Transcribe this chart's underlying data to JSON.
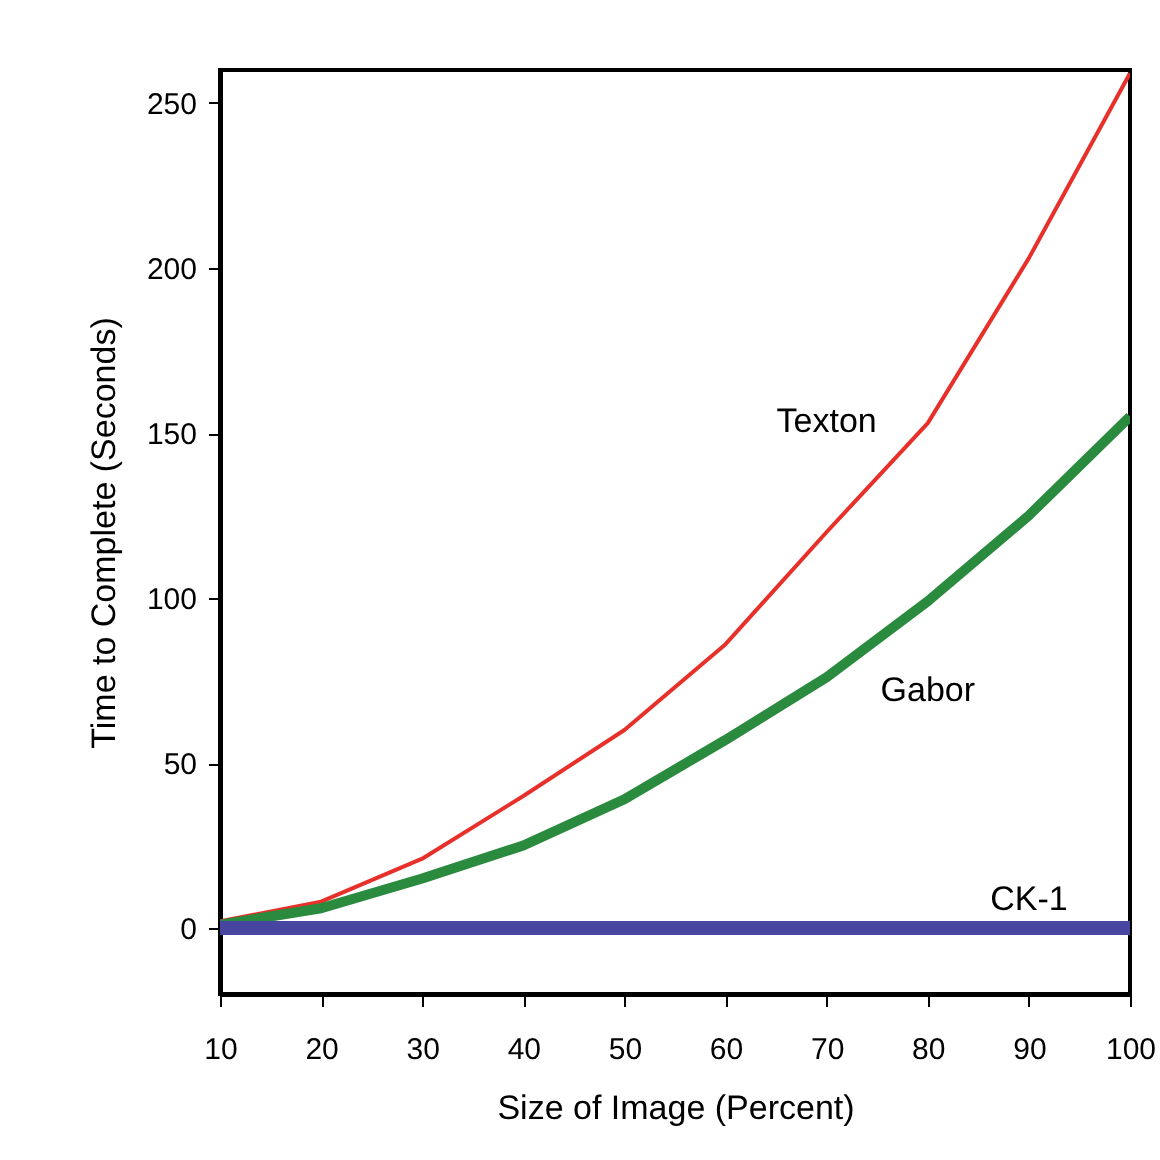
{
  "chart_data": {
    "type": "line",
    "xlabel": "Size of Image (Percent)",
    "ylabel": "Time to Complete (Seconds)",
    "x": [
      10,
      20,
      30,
      40,
      50,
      60,
      70,
      80,
      90,
      100
    ],
    "series": [
      {
        "name": "Texton",
        "color": "#e8302a",
        "values": [
          2,
          8,
          21,
          40,
          60,
          86,
          120,
          153,
          203,
          259
        ]
      },
      {
        "name": "Gabor",
        "color": "#2a8a3e",
        "values": [
          1,
          6,
          15,
          25,
          39,
          57,
          76,
          99,
          125,
          155
        ]
      },
      {
        "name": "CK-1",
        "color": "#4646a0",
        "values": [
          0,
          0,
          0,
          0,
          0,
          0,
          0,
          0,
          0,
          0
        ]
      }
    ],
    "xlim": [
      10,
      100
    ],
    "ylim": [
      -20,
      260
    ],
    "xticks": [
      10,
      20,
      30,
      40,
      50,
      60,
      70,
      80,
      90,
      100
    ],
    "yticks": [
      0,
      50,
      100,
      150,
      200,
      250
    ],
    "grid": false,
    "marker": "none",
    "line_style": "solid"
  }
}
